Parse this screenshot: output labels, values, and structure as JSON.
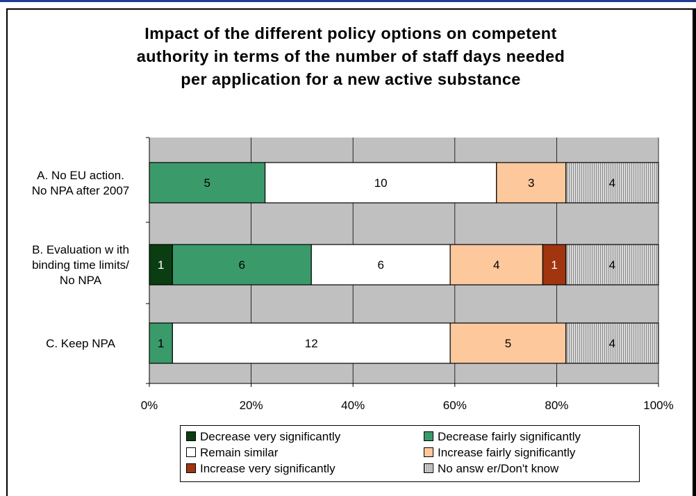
{
  "chart_data": {
    "type": "bar",
    "orientation": "horizontal",
    "stacking": "percent",
    "title": "Impact of the different policy options on competent authority in terms of the number of staff days needed per application for a new active substance",
    "title_lines": [
      "Impact of the different policy options on competent",
      "authority in terms of the number of staff days needed",
      "per application for a new active substance"
    ],
    "categories": [
      [
        "A. No EU action.",
        "No NPA after 2007"
      ],
      [
        "B. Evaluation w ith",
        "binding time limits/",
        "No NPA"
      ],
      [
        "C. Keep NPA"
      ]
    ],
    "x_ticks": [
      "0%",
      "20%",
      "40%",
      "60%",
      "80%",
      "100%"
    ],
    "xlim": [
      0,
      100
    ],
    "grid": true,
    "legend_position": "bottom",
    "series": [
      {
        "name": "Decrease very significantly",
        "color": "#0b3d12",
        "label_color": "#ffffff",
        "values": [
          0,
          1,
          0
        ]
      },
      {
        "name": "Decrease fairly significantly",
        "color": "#3a9a6a",
        "label_color": "#000000",
        "values": [
          5,
          6,
          1
        ]
      },
      {
        "name": "Remain similar",
        "color": "#ffffff",
        "label_color": "#000000",
        "values": [
          10,
          6,
          12
        ]
      },
      {
        "name": "Increase fairly significantly",
        "color": "#fcc89c",
        "label_color": "#000000",
        "values": [
          3,
          4,
          5
        ]
      },
      {
        "name": "Increase very significantly",
        "color": "#a0350f",
        "label_color": "#ffffff",
        "values": [
          0,
          1,
          0
        ]
      },
      {
        "name": "No answ er/Don't know",
        "color": "#c4c4c4",
        "label_color": "#000000",
        "hatched": true,
        "values": [
          4,
          4,
          4
        ]
      }
    ]
  }
}
